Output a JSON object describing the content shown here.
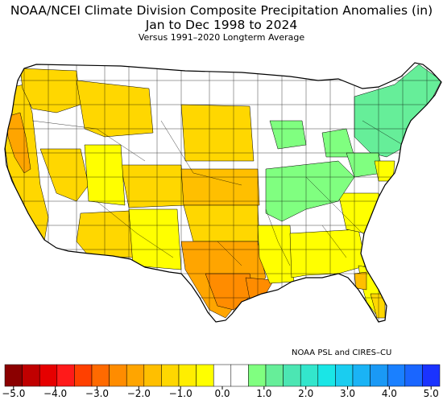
{
  "title_line1": "NOAA/NCEI Climate Division Composite Precipitation Anomalies (in)",
  "title_line2": "Jan to Dec 1998 to 2024",
  "title_line3": "Versus 1991–2020 Longterm Average",
  "credit": "NOAA PSL and CIRES–CU",
  "legend": {
    "colors": [
      "#8b0000",
      "#c00000",
      "#e60000",
      "#ff1a1a",
      "#ff4000",
      "#ff6a00",
      "#ff8c00",
      "#ffa500",
      "#ffbf00",
      "#ffd700",
      "#ffee00",
      "#ffff00",
      "#ffffff",
      "#ffffff",
      "#80ff80",
      "#66ee99",
      "#4ce6b3",
      "#33e6cc",
      "#1ae6e6",
      "#1acdf0",
      "#1ab3f5",
      "#1a99f5",
      "#1a80ff",
      "#1a66ff",
      "#1a33ff"
    ],
    "ticks": [
      "−5.0",
      "−4.0",
      "−3.0",
      "−2.0",
      "−1.0",
      "0.0",
      "1.0",
      "2.0",
      "3.0",
      "4.0",
      "5.0"
    ]
  },
  "map_palette": {
    "dry_light": "#ffff00",
    "dry_mid": "#ffd700",
    "dry_orange": "#ffbf00",
    "dry_deep": "#ffa500",
    "dry_max": "#ff8c00",
    "wet_light": "#80ff80",
    "wet_mid": "#66ee99",
    "neutral": "#ffffff",
    "border": "#000000"
  }
}
